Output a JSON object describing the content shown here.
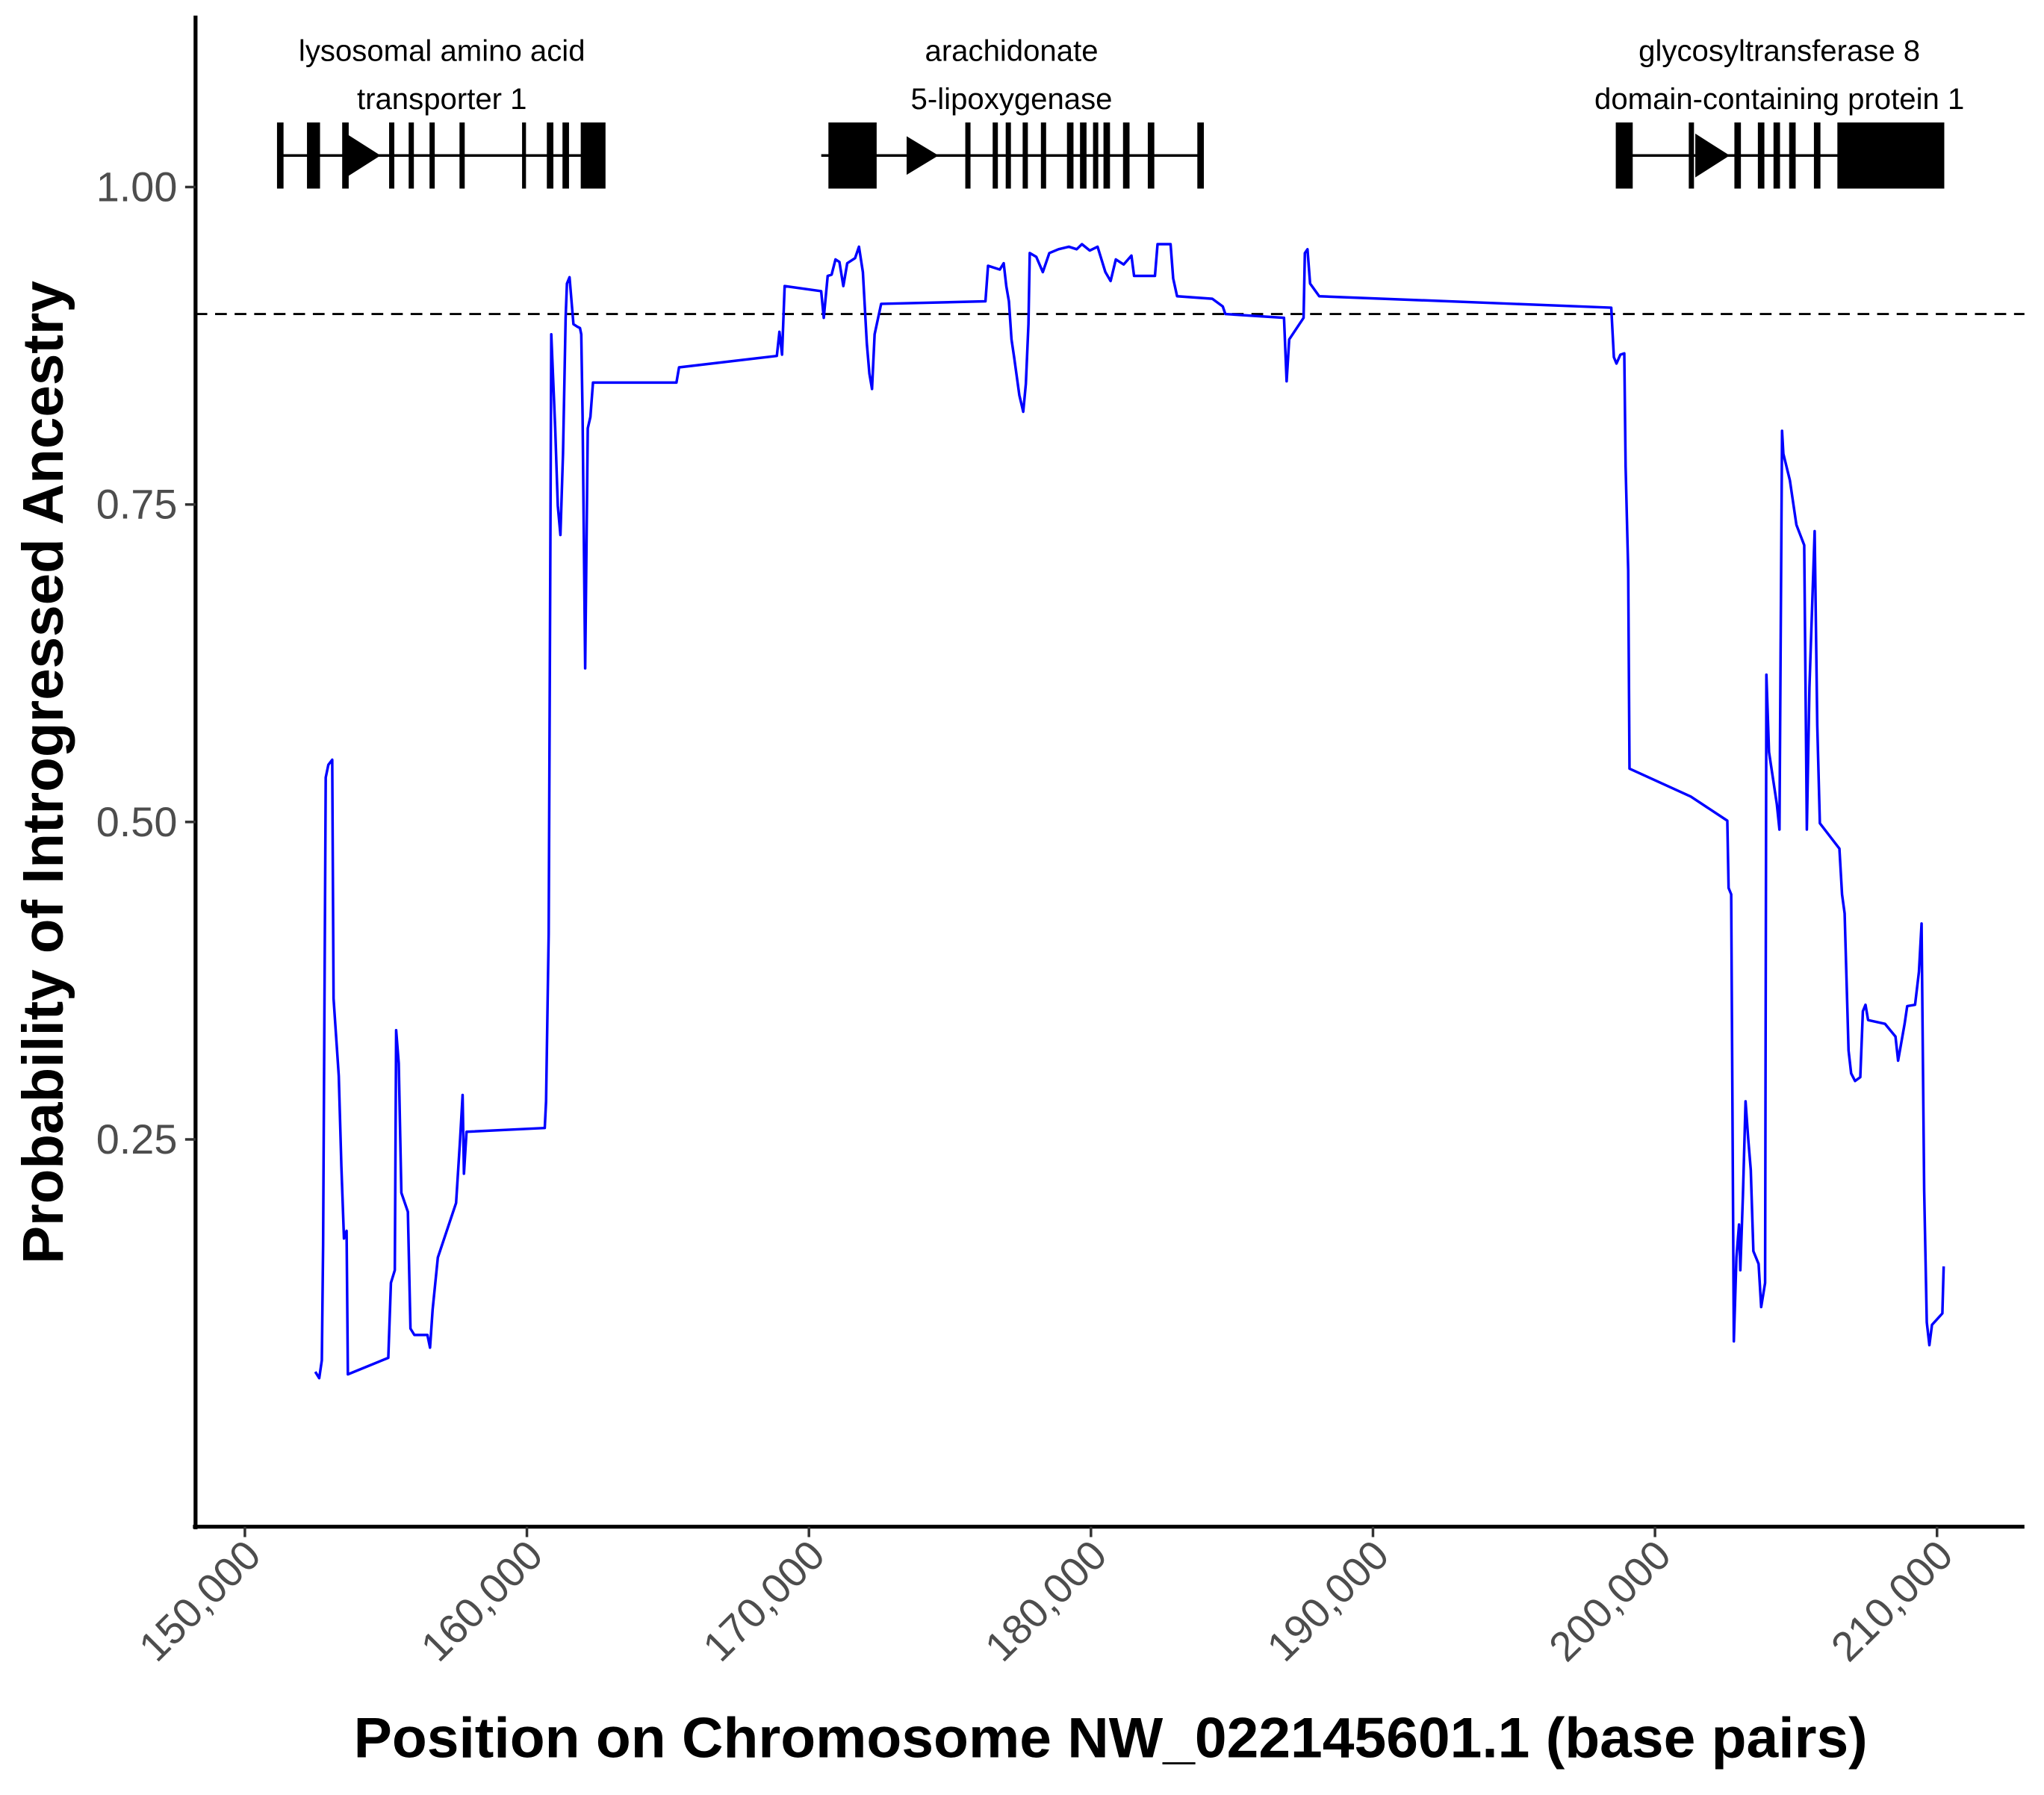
{
  "chart_data": {
    "type": "line",
    "xlabel": "Position on Chromosome NW_022145601.1 (base pairs)",
    "ylabel": "Probability of Introgressed Ancestry",
    "annotations": [
      [
        "lysosomal amino acid",
        "transporter 1"
      ],
      [
        "arachidonate",
        "5-lipoxygenase"
      ],
      [
        "glycosyltransferase 8",
        "domain-containing protein 1"
      ]
    ],
    "threshold": 0.9,
    "color": "#0000ff",
    "xlim": [
      148250,
      213100
    ],
    "ylim": [
      -0.055,
      1.133
    ],
    "xticks": [
      {
        "value": 150000,
        "label": "150,000"
      },
      {
        "value": 160000,
        "label": "160,000"
      },
      {
        "value": 170000,
        "label": "170,000"
      },
      {
        "value": 180000,
        "label": "180,000"
      },
      {
        "value": 190000,
        "label": "190,000"
      },
      {
        "value": 200000,
        "label": "200,000"
      },
      {
        "value": 210000,
        "label": "210,000"
      }
    ],
    "yticks": [
      0.25,
      {
        "value": 0.5,
        "label": "0.50"
      },
      0.75,
      {
        "value": 1,
        "label": "1.00"
      }
    ],
    "grid": false,
    "x": [
      152496,
      152635,
      152728,
      152774,
      152866,
      152959,
      153097,
      153144,
      153329,
      153421,
      153513,
      153606,
      153652,
      155085,
      155178,
      155316,
      155363,
      155455,
      155548,
      155779,
      155871,
      156010,
      156472,
      156565,
      156657,
      156842,
      157489,
      157628,
      157720,
      157767,
      157859,
      160633,
      160679,
      160772,
      160864,
      161003,
      161095,
      161188,
      161280,
      161373,
      161419,
      161511,
      161650,
      161789,
      161881,
      161927,
      161974,
      162066,
      162158,
      162251,
      162343,
      165302,
      165395,
      168862,
      168954,
      169047,
      169139,
      170434,
      170526,
      170665,
      170804,
      170942,
      171081,
      171220,
      171358,
      171636,
      171774,
      171913,
      172052,
      172144,
      172237,
      172329,
      172560,
      176259,
      176351,
      176767,
      176906,
      176998,
      177091,
      177183,
      177276,
      177461,
      177599,
      177692,
      177784,
      177830,
      178062,
      178293,
      178524,
      178848,
      179217,
      179495,
      179680,
      179957,
      180234,
      180512,
      180697,
      180882,
      181159,
      181436,
      181529,
      182269,
      182361,
      182823,
      182916,
      183054,
      184303,
      184673,
      184765,
      186845,
      186938,
      187030,
      187539,
      187585,
      187677,
      187770,
      188094,
      198449,
      198542,
      198634,
      198773,
      198911,
      198958,
      199050,
      199096,
      201269,
      202564,
      202610,
      202702,
      202795,
      202887,
      202980,
      203026,
      203118,
      203211,
      203303,
      203396,
      203488,
      203673,
      203765,
      203904,
      203950,
      204043,
      204320,
      204413,
      204505,
      204551,
      204783,
      205014,
      205291,
      205384,
      205476,
      205661,
      205754,
      205846,
      206539,
      206632,
      206724,
      206863,
      206955,
      207094,
      207279,
      207371,
      207464,
      207556,
      208157,
      208527,
      208620,
      208851,
      208943,
      209221,
      209359,
      209452,
      209544,
      209637,
      209729,
      209822,
      210190,
      210236
    ],
    "values": [
      0.067,
      0.062,
      0.076,
      0.167,
      0.535,
      0.545,
      0.549,
      0.361,
      0.3,
      0.229,
      0.172,
      0.178,
      0.065,
      0.078,
      0.137,
      0.147,
      0.336,
      0.31,
      0.208,
      0.193,
      0.101,
      0.096,
      0.096,
      0.086,
      0.116,
      0.157,
      0.2,
      0.249,
      0.285,
      0.223,
      0.256,
      0.259,
      0.28,
      0.412,
      0.884,
      0.81,
      0.749,
      0.726,
      0.79,
      0.897,
      0.924,
      0.929,
      0.892,
      0.89,
      0.889,
      0.884,
      0.82,
      0.621,
      0.81,
      0.819,
      0.846,
      0.846,
      0.858,
      0.867,
      0.886,
      0.868,
      0.922,
      0.918,
      0.897,
      0.93,
      0.931,
      0.943,
      0.941,
      0.922,
      0.94,
      0.944,
      0.953,
      0.933,
      0.877,
      0.853,
      0.841,
      0.884,
      0.908,
      0.91,
      0.938,
      0.935,
      0.94,
      0.922,
      0.91,
      0.88,
      0.866,
      0.836,
      0.823,
      0.845,
      0.892,
      0.948,
      0.945,
      0.933,
      0.948,
      0.951,
      0.953,
      0.951,
      0.955,
      0.95,
      0.953,
      0.933,
      0.926,
      0.943,
      0.939,
      0.946,
      0.93,
      0.93,
      0.955,
      0.955,
      0.928,
      0.914,
      0.912,
      0.906,
      0.9,
      0.897,
      0.847,
      0.88,
      0.897,
      0.948,
      0.951,
      0.924,
      0.914,
      0.905,
      0.866,
      0.861,
      0.868,
      0.869,
      0.78,
      0.698,
      0.542,
      0.52,
      0.501,
      0.448,
      0.443,
      0.091,
      0.157,
      0.183,
      0.147,
      0.206,
      0.28,
      0.251,
      0.226,
      0.162,
      0.152,
      0.118,
      0.137,
      0.616,
      0.555,
      0.514,
      0.494,
      0.808,
      0.79,
      0.769,
      0.734,
      0.718,
      0.494,
      0.606,
      0.729,
      0.576,
      0.499,
      0.479,
      0.443,
      0.428,
      0.32,
      0.302,
      0.296,
      0.299,
      0.351,
      0.356,
      0.344,
      0.341,
      0.331,
      0.312,
      0.341,
      0.355,
      0.356,
      0.382,
      0.42,
      0.21,
      0.106,
      0.088,
      0.104,
      0.113,
      0.15
    ]
  }
}
